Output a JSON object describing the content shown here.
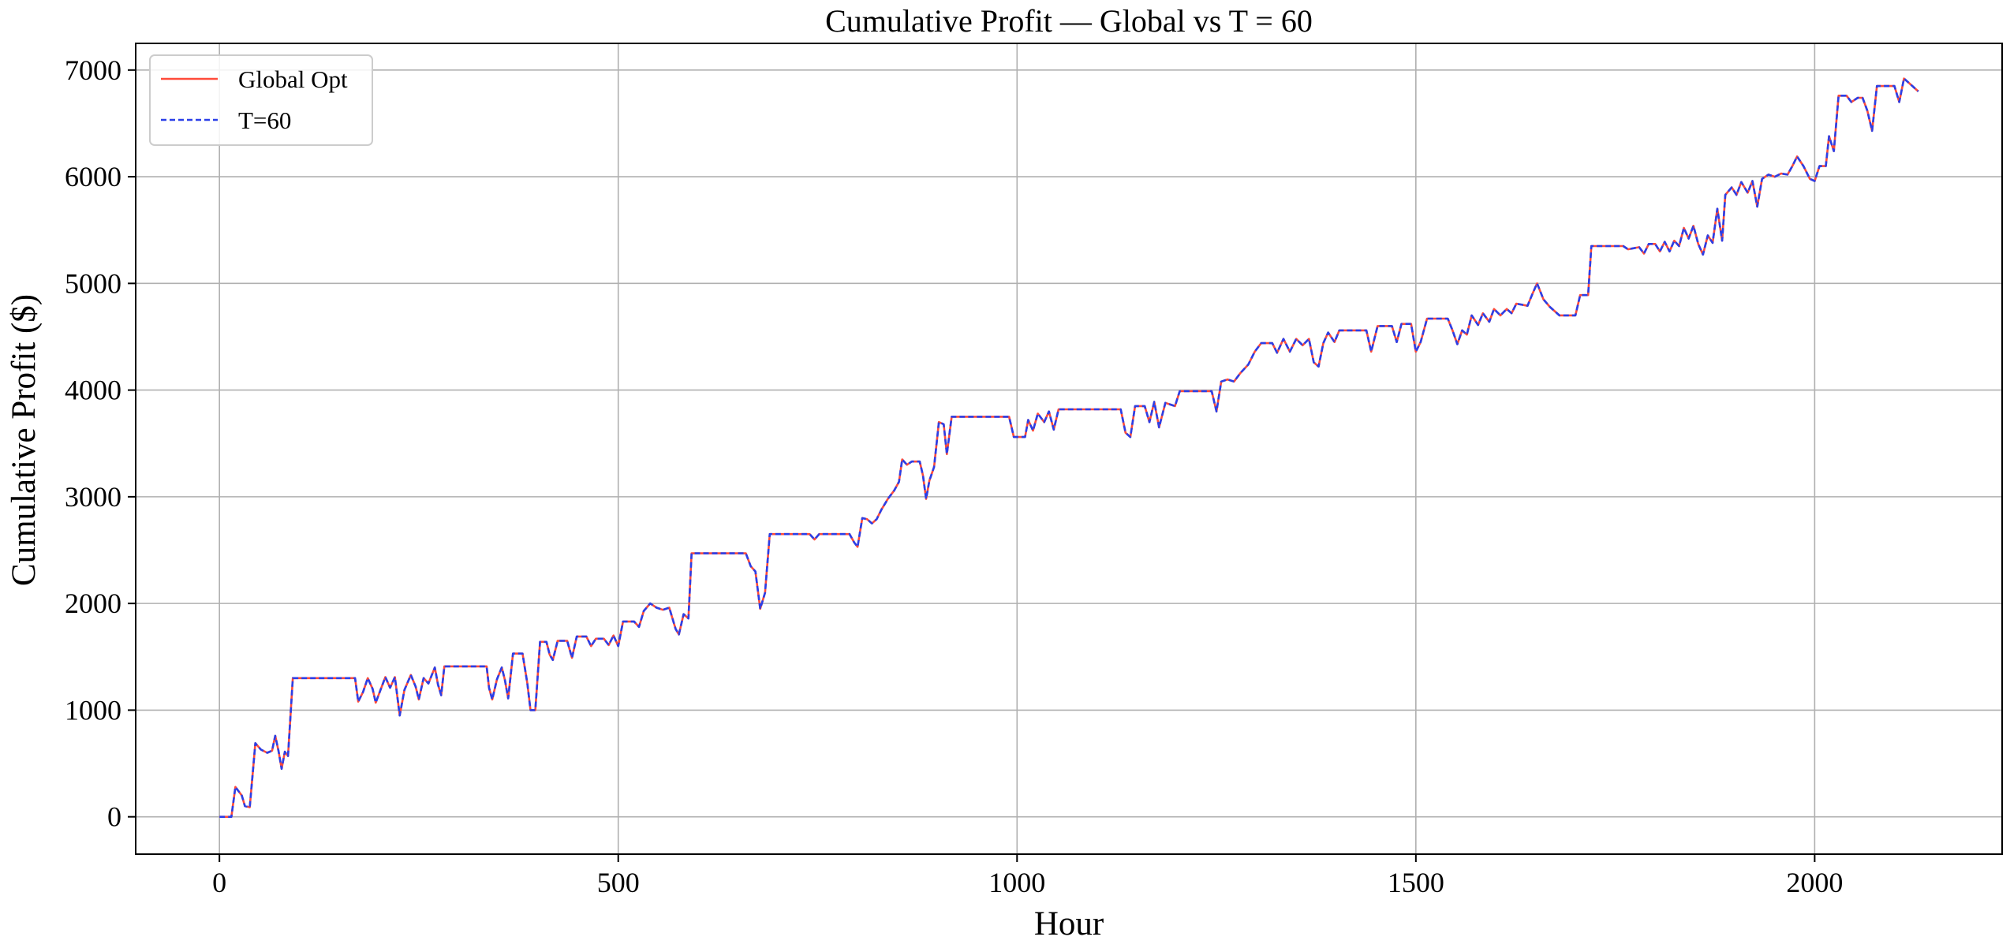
{
  "chart_data": {
    "type": "line",
    "title": "Cumulative Profit — Global vs T = 60",
    "xlabel": "Hour",
    "ylabel": "Cumulative Profit ($)",
    "xlim": [
      -105,
      2235
    ],
    "ylim": [
      -350,
      7250
    ],
    "xticks": [
      0,
      500,
      1000,
      1500,
      2000
    ],
    "yticks": [
      0,
      1000,
      2000,
      3000,
      4000,
      5000,
      6000,
      7000
    ],
    "grid": true,
    "legend_position": "upper left",
    "series": [
      {
        "name": "Global Opt",
        "color": "#ff4b3a",
        "dash": "solid",
        "points": [
          [
            0,
            0
          ],
          [
            15,
            0
          ],
          [
            20,
            280
          ],
          [
            28,
            200
          ],
          [
            32,
            100
          ],
          [
            38,
            90
          ],
          [
            45,
            690
          ],
          [
            52,
            630
          ],
          [
            60,
            600
          ],
          [
            66,
            620
          ],
          [
            70,
            760
          ],
          [
            74,
            620
          ],
          [
            78,
            450
          ],
          [
            82,
            610
          ],
          [
            86,
            570
          ],
          [
            92,
            1300
          ],
          [
            170,
            1300
          ],
          [
            174,
            1080
          ],
          [
            180,
            1170
          ],
          [
            186,
            1300
          ],
          [
            192,
            1200
          ],
          [
            196,
            1070
          ],
          [
            202,
            1190
          ],
          [
            208,
            1310
          ],
          [
            214,
            1210
          ],
          [
            220,
            1310
          ],
          [
            226,
            950
          ],
          [
            232,
            1190
          ],
          [
            240,
            1330
          ],
          [
            246,
            1220
          ],
          [
            250,
            1100
          ],
          [
            256,
            1300
          ],
          [
            262,
            1250
          ],
          [
            270,
            1400
          ],
          [
            274,
            1240
          ],
          [
            278,
            1140
          ],
          [
            282,
            1410
          ],
          [
            335,
            1410
          ],
          [
            338,
            1210
          ],
          [
            342,
            1100
          ],
          [
            348,
            1290
          ],
          [
            354,
            1400
          ],
          [
            358,
            1280
          ],
          [
            362,
            1110
          ],
          [
            368,
            1530
          ],
          [
            380,
            1530
          ],
          [
            386,
            1250
          ],
          [
            390,
            1000
          ],
          [
            396,
            1000
          ],
          [
            402,
            1640
          ],
          [
            410,
            1640
          ],
          [
            414,
            1520
          ],
          [
            418,
            1470
          ],
          [
            424,
            1650
          ],
          [
            436,
            1650
          ],
          [
            442,
            1490
          ],
          [
            448,
            1690
          ],
          [
            460,
            1690
          ],
          [
            466,
            1600
          ],
          [
            472,
            1670
          ],
          [
            482,
            1670
          ],
          [
            488,
            1610
          ],
          [
            494,
            1700
          ],
          [
            500,
            1600
          ],
          [
            506,
            1830
          ],
          [
            520,
            1830
          ],
          [
            526,
            1780
          ],
          [
            532,
            1930
          ],
          [
            540,
            2000
          ],
          [
            548,
            1960
          ],
          [
            556,
            1940
          ],
          [
            564,
            1960
          ],
          [
            572,
            1760
          ],
          [
            576,
            1710
          ],
          [
            582,
            1900
          ],
          [
            588,
            1860
          ],
          [
            592,
            2470
          ],
          [
            660,
            2470
          ],
          [
            666,
            2350
          ],
          [
            672,
            2300
          ],
          [
            678,
            1950
          ],
          [
            684,
            2100
          ],
          [
            690,
            2650
          ],
          [
            740,
            2650
          ],
          [
            746,
            2600
          ],
          [
            752,
            2650
          ],
          [
            790,
            2650
          ],
          [
            796,
            2570
          ],
          [
            800,
            2530
          ],
          [
            806,
            2800
          ],
          [
            812,
            2790
          ],
          [
            818,
            2750
          ],
          [
            824,
            2790
          ],
          [
            830,
            2880
          ],
          [
            838,
            2980
          ],
          [
            846,
            3060
          ],
          [
            852,
            3140
          ],
          [
            856,
            3350
          ],
          [
            862,
            3300
          ],
          [
            868,
            3330
          ],
          [
            878,
            3330
          ],
          [
            882,
            3200
          ],
          [
            886,
            2980
          ],
          [
            890,
            3150
          ],
          [
            896,
            3280
          ],
          [
            902,
            3700
          ],
          [
            908,
            3680
          ],
          [
            912,
            3400
          ],
          [
            918,
            3750
          ],
          [
            990,
            3750
          ],
          [
            996,
            3560
          ],
          [
            1010,
            3560
          ],
          [
            1014,
            3720
          ],
          [
            1020,
            3620
          ],
          [
            1026,
            3780
          ],
          [
            1034,
            3700
          ],
          [
            1040,
            3800
          ],
          [
            1046,
            3630
          ],
          [
            1052,
            3820
          ],
          [
            1130,
            3820
          ],
          [
            1136,
            3600
          ],
          [
            1142,
            3560
          ],
          [
            1148,
            3850
          ],
          [
            1160,
            3850
          ],
          [
            1166,
            3700
          ],
          [
            1172,
            3890
          ],
          [
            1178,
            3650
          ],
          [
            1186,
            3880
          ],
          [
            1198,
            3850
          ],
          [
            1204,
            3990
          ],
          [
            1244,
            3990
          ],
          [
            1250,
            3800
          ],
          [
            1256,
            4080
          ],
          [
            1264,
            4100
          ],
          [
            1272,
            4080
          ],
          [
            1280,
            4160
          ],
          [
            1290,
            4240
          ],
          [
            1298,
            4360
          ],
          [
            1306,
            4440
          ],
          [
            1320,
            4440
          ],
          [
            1326,
            4350
          ],
          [
            1334,
            4480
          ],
          [
            1342,
            4360
          ],
          [
            1350,
            4480
          ],
          [
            1358,
            4420
          ],
          [
            1366,
            4480
          ],
          [
            1372,
            4260
          ],
          [
            1378,
            4220
          ],
          [
            1384,
            4440
          ],
          [
            1390,
            4540
          ],
          [
            1398,
            4450
          ],
          [
            1404,
            4560
          ],
          [
            1438,
            4560
          ],
          [
            1444,
            4360
          ],
          [
            1452,
            4600
          ],
          [
            1470,
            4600
          ],
          [
            1476,
            4450
          ],
          [
            1482,
            4620
          ],
          [
            1494,
            4620
          ],
          [
            1500,
            4360
          ],
          [
            1506,
            4450
          ],
          [
            1514,
            4670
          ],
          [
            1540,
            4670
          ],
          [
            1546,
            4560
          ],
          [
            1552,
            4430
          ],
          [
            1558,
            4560
          ],
          [
            1564,
            4520
          ],
          [
            1570,
            4700
          ],
          [
            1578,
            4610
          ],
          [
            1584,
            4720
          ],
          [
            1592,
            4640
          ],
          [
            1598,
            4760
          ],
          [
            1606,
            4700
          ],
          [
            1614,
            4760
          ],
          [
            1620,
            4720
          ],
          [
            1626,
            4810
          ],
          [
            1640,
            4790
          ],
          [
            1646,
            4900
          ],
          [
            1652,
            5000
          ],
          [
            1660,
            4850
          ],
          [
            1668,
            4780
          ],
          [
            1680,
            4700
          ],
          [
            1700,
            4700
          ],
          [
            1706,
            4890
          ],
          [
            1716,
            4890
          ],
          [
            1720,
            5350
          ],
          [
            1760,
            5350
          ],
          [
            1766,
            5320
          ],
          [
            1780,
            5340
          ],
          [
            1786,
            5280
          ],
          [
            1792,
            5370
          ],
          [
            1800,
            5370
          ],
          [
            1806,
            5300
          ],
          [
            1812,
            5390
          ],
          [
            1818,
            5300
          ],
          [
            1824,
            5400
          ],
          [
            1830,
            5350
          ],
          [
            1836,
            5520
          ],
          [
            1842,
            5420
          ],
          [
            1848,
            5540
          ],
          [
            1854,
            5370
          ],
          [
            1860,
            5270
          ],
          [
            1866,
            5450
          ],
          [
            1872,
            5380
          ],
          [
            1878,
            5700
          ],
          [
            1884,
            5400
          ],
          [
            1888,
            5830
          ],
          [
            1896,
            5900
          ],
          [
            1902,
            5830
          ],
          [
            1908,
            5950
          ],
          [
            1916,
            5850
          ],
          [
            1922,
            5960
          ],
          [
            1928,
            5720
          ],
          [
            1934,
            5980
          ],
          [
            1942,
            6020
          ],
          [
            1950,
            6000
          ],
          [
            1958,
            6030
          ],
          [
            1966,
            6020
          ],
          [
            1972,
            6100
          ],
          [
            1978,
            6190
          ],
          [
            1986,
            6100
          ],
          [
            1994,
            5980
          ],
          [
            2000,
            5960
          ],
          [
            2006,
            6100
          ],
          [
            2014,
            6100
          ],
          [
            2018,
            6380
          ],
          [
            2024,
            6240
          ],
          [
            2030,
            6760
          ],
          [
            2040,
            6760
          ],
          [
            2046,
            6700
          ],
          [
            2054,
            6740
          ],
          [
            2060,
            6740
          ],
          [
            2066,
            6620
          ],
          [
            2072,
            6430
          ],
          [
            2078,
            6850
          ],
          [
            2100,
            6850
          ],
          [
            2106,
            6700
          ],
          [
            2112,
            6920
          ],
          [
            2118,
            6880
          ],
          [
            2124,
            6840
          ],
          [
            2130,
            6800
          ]
        ]
      },
      {
        "name": "T=60",
        "color": "#2a3fe8",
        "dash": "dashed",
        "same_as": "Global Opt"
      }
    ]
  }
}
